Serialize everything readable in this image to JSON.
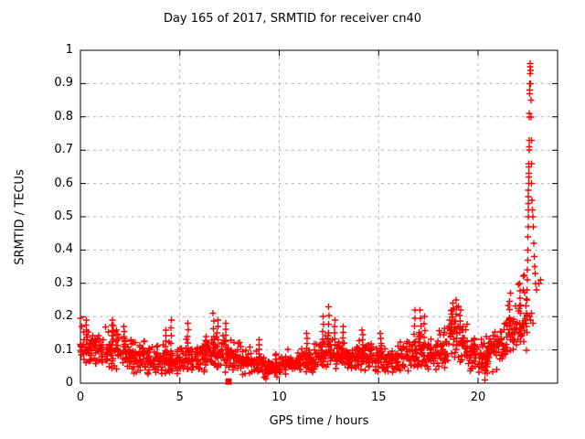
{
  "chart_data": {
    "type": "scatter",
    "title": "Day 165 of 2017, SRMTID for receiver cn40",
    "xlabel": "GPS time / hours",
    "ylabel": "SRMTID / TECUs",
    "xlim": [
      0,
      24
    ],
    "ylim": [
      0,
      1
    ],
    "xticks": [
      {
        "v": 0,
        "label": "0"
      },
      {
        "v": 5,
        "label": "5"
      },
      {
        "v": 10,
        "label": "10"
      },
      {
        "v": 15,
        "label": "15"
      },
      {
        "v": 20,
        "label": "20"
      }
    ],
    "yticks": [
      {
        "v": 0,
        "label": "0"
      },
      {
        "v": 0.1,
        "label": "0.1"
      },
      {
        "v": 0.2,
        "label": "0.2"
      },
      {
        "v": 0.3,
        "label": "0.3"
      },
      {
        "v": 0.4,
        "label": "0.4"
      },
      {
        "v": 0.5,
        "label": "0.5"
      },
      {
        "v": 0.6,
        "label": "0.6"
      },
      {
        "v": 0.7,
        "label": "0.7"
      },
      {
        "v": 0.8,
        "label": "0.8"
      },
      {
        "v": 0.9,
        "label": "0.9"
      },
      {
        "v": 1,
        "label": "1"
      }
    ],
    "grid": {
      "style": "dotted",
      "color": "#b3b3b3",
      "x": [
        5,
        10,
        15,
        20
      ],
      "y": [
        0.1,
        0.2,
        0.3,
        0.4,
        0.5,
        0.6,
        0.7,
        0.8,
        0.9
      ]
    },
    "axis_color": "#000000",
    "marker": {
      "shape": "plus",
      "color": "#ff0000",
      "size": 7
    },
    "legend": "none",
    "seed": 165,
    "baseline_bins": {
      "bin_width": 0.25,
      "points_per_bin": 16,
      "bins": [
        [
          0.0,
          0.115,
          0.05
        ],
        [
          0.25,
          0.11,
          0.048
        ],
        [
          0.5,
          0.105,
          0.045
        ],
        [
          0.75,
          0.1,
          0.045
        ],
        [
          1.0,
          0.1,
          0.04
        ],
        [
          1.25,
          0.1,
          0.042
        ],
        [
          1.5,
          0.105,
          0.048
        ],
        [
          1.75,
          0.1,
          0.045
        ],
        [
          2.0,
          0.09,
          0.04
        ],
        [
          2.25,
          0.088,
          0.042
        ],
        [
          2.5,
          0.085,
          0.045
        ],
        [
          2.75,
          0.08,
          0.04
        ],
        [
          3.0,
          0.07,
          0.035
        ],
        [
          3.25,
          0.068,
          0.032
        ],
        [
          3.5,
          0.065,
          0.03
        ],
        [
          3.75,
          0.065,
          0.03
        ],
        [
          4.0,
          0.07,
          0.035
        ],
        [
          4.25,
          0.07,
          0.035
        ],
        [
          4.5,
          0.065,
          0.03
        ],
        [
          4.75,
          0.065,
          0.03
        ],
        [
          5.0,
          0.075,
          0.035
        ],
        [
          5.25,
          0.075,
          0.035
        ],
        [
          5.5,
          0.07,
          0.03
        ],
        [
          5.75,
          0.07,
          0.03
        ],
        [
          6.0,
          0.075,
          0.035
        ],
        [
          6.25,
          0.075,
          0.035
        ],
        [
          6.5,
          0.085,
          0.04
        ],
        [
          6.75,
          0.085,
          0.04
        ],
        [
          7.0,
          0.085,
          0.04
        ],
        [
          7.25,
          0.085,
          0.04
        ],
        [
          7.5,
          0.075,
          0.035
        ],
        [
          7.75,
          0.07,
          0.032
        ],
        [
          8.0,
          0.065,
          0.03
        ],
        [
          8.25,
          0.062,
          0.03
        ],
        [
          8.5,
          0.06,
          0.03
        ],
        [
          8.75,
          0.058,
          0.028
        ],
        [
          9.0,
          0.055,
          0.03
        ],
        [
          9.25,
          0.05,
          0.028
        ],
        [
          9.5,
          0.05,
          0.025
        ],
        [
          9.75,
          0.048,
          0.025
        ],
        [
          10.0,
          0.055,
          0.025
        ],
        [
          10.25,
          0.058,
          0.026
        ],
        [
          10.5,
          0.06,
          0.03
        ],
        [
          10.75,
          0.065,
          0.03
        ],
        [
          11.0,
          0.07,
          0.03
        ],
        [
          11.25,
          0.07,
          0.03
        ],
        [
          11.5,
          0.07,
          0.03
        ],
        [
          11.75,
          0.075,
          0.032
        ],
        [
          12.0,
          0.08,
          0.035
        ],
        [
          12.25,
          0.085,
          0.038
        ],
        [
          12.5,
          0.09,
          0.04
        ],
        [
          12.75,
          0.088,
          0.038
        ],
        [
          13.0,
          0.08,
          0.035
        ],
        [
          13.25,
          0.078,
          0.032
        ],
        [
          13.5,
          0.075,
          0.03
        ],
        [
          13.75,
          0.078,
          0.032
        ],
        [
          14.0,
          0.08,
          0.035
        ],
        [
          14.25,
          0.078,
          0.032
        ],
        [
          14.5,
          0.075,
          0.03
        ],
        [
          14.75,
          0.072,
          0.03
        ],
        [
          15.0,
          0.07,
          0.03
        ],
        [
          15.25,
          0.07,
          0.03
        ],
        [
          15.5,
          0.07,
          0.03
        ],
        [
          15.75,
          0.072,
          0.03
        ],
        [
          16.0,
          0.075,
          0.03
        ],
        [
          16.25,
          0.078,
          0.032
        ],
        [
          16.5,
          0.085,
          0.04
        ],
        [
          16.75,
          0.09,
          0.04
        ],
        [
          17.0,
          0.09,
          0.04
        ],
        [
          17.25,
          0.088,
          0.04
        ],
        [
          17.5,
          0.08,
          0.035
        ],
        [
          17.75,
          0.085,
          0.038
        ],
        [
          18.0,
          0.09,
          0.04
        ],
        [
          18.25,
          0.11,
          0.05
        ],
        [
          18.5,
          0.13,
          0.06
        ],
        [
          18.75,
          0.135,
          0.06
        ],
        [
          19.0,
          0.13,
          0.06
        ],
        [
          19.25,
          0.12,
          0.055
        ],
        [
          19.5,
          0.1,
          0.05
        ],
        [
          19.75,
          0.09,
          0.045
        ],
        [
          20.0,
          0.08,
          0.04
        ],
        [
          20.25,
          0.07,
          0.045
        ],
        [
          20.5,
          0.09,
          0.045
        ],
        [
          20.75,
          0.095,
          0.045
        ],
        [
          21.0,
          0.11,
          0.05
        ],
        [
          21.25,
          0.12,
          0.055
        ],
        [
          21.5,
          0.14,
          0.06
        ],
        [
          21.75,
          0.15,
          0.06
        ],
        [
          22.0,
          0.18,
          0.07
        ],
        [
          22.25,
          0.2,
          0.08
        ]
      ]
    },
    "spikes": [
      [
        0.3,
        0.19
      ],
      [
        1.6,
        0.19
      ],
      [
        2.2,
        0.17
      ],
      [
        4.3,
        0.16
      ],
      [
        4.55,
        0.19
      ],
      [
        5.4,
        0.18
      ],
      [
        6.3,
        0.14
      ],
      [
        6.7,
        0.21
      ],
      [
        6.9,
        0.19
      ],
      [
        7.3,
        0.18
      ],
      [
        9.0,
        0.13
      ],
      [
        11.4,
        0.15
      ],
      [
        12.2,
        0.2
      ],
      [
        12.5,
        0.23
      ],
      [
        12.8,
        0.19
      ],
      [
        13.2,
        0.17
      ],
      [
        14.2,
        0.16
      ],
      [
        15.1,
        0.15
      ],
      [
        16.8,
        0.22
      ],
      [
        17.1,
        0.22
      ],
      [
        17.3,
        0.2
      ],
      [
        18.7,
        0.24
      ],
      [
        18.9,
        0.25
      ],
      [
        19.1,
        0.22
      ],
      [
        21.6,
        0.27
      ],
      [
        22.1,
        0.3
      ]
    ],
    "dips": [
      [
        2.7,
        0.03
      ],
      [
        9.3,
        0.02
      ],
      [
        20.35,
        0.01
      ],
      [
        20.45,
        0.03
      ]
    ],
    "spike_column_points": [
      [
        22.42,
        0.18
      ],
      [
        22.44,
        0.21
      ],
      [
        22.46,
        0.25
      ],
      [
        22.46,
        0.28
      ],
      [
        22.48,
        0.31
      ],
      [
        22.48,
        0.34
      ],
      [
        22.5,
        0.37
      ],
      [
        22.5,
        0.4
      ],
      [
        22.5,
        0.44
      ],
      [
        22.52,
        0.47
      ],
      [
        22.52,
        0.5
      ],
      [
        22.52,
        0.52
      ],
      [
        22.54,
        0.54
      ],
      [
        22.54,
        0.56
      ],
      [
        22.54,
        0.58
      ],
      [
        22.55,
        0.6
      ],
      [
        22.55,
        0.62
      ],
      [
        22.55,
        0.63
      ],
      [
        22.56,
        0.65
      ],
      [
        22.56,
        0.66
      ],
      [
        22.57,
        0.7
      ],
      [
        22.57,
        0.71
      ],
      [
        22.58,
        0.73
      ],
      [
        22.58,
        0.8
      ],
      [
        22.58,
        0.81
      ],
      [
        22.6,
        0.87
      ],
      [
        22.6,
        0.88
      ],
      [
        22.6,
        0.9
      ],
      [
        22.62,
        0.93
      ],
      [
        22.62,
        0.95
      ],
      [
        22.62,
        0.96
      ],
      [
        22.64,
        0.94
      ],
      [
        22.64,
        0.9
      ],
      [
        22.66,
        0.85
      ],
      [
        22.66,
        0.8
      ],
      [
        22.68,
        0.73
      ],
      [
        22.7,
        0.66
      ],
      [
        22.7,
        0.6
      ],
      [
        22.72,
        0.55
      ],
      [
        22.74,
        0.52
      ],
      [
        22.76,
        0.5
      ],
      [
        22.78,
        0.47
      ],
      [
        22.8,
        0.42
      ],
      [
        22.82,
        0.38
      ],
      [
        22.85,
        0.35
      ],
      [
        22.88,
        0.33
      ],
      [
        22.9,
        0.3
      ],
      [
        22.95,
        0.28
      ],
      [
        23.05,
        0.3
      ],
      [
        23.15,
        0.31
      ],
      [
        22.6,
        0.2
      ],
      [
        22.65,
        0.19
      ],
      [
        22.7,
        0.21
      ],
      [
        22.75,
        0.18
      ]
    ],
    "special_points": [
      {
        "x": 7.45,
        "y": 0.005,
        "marker": "filled-square"
      }
    ]
  }
}
